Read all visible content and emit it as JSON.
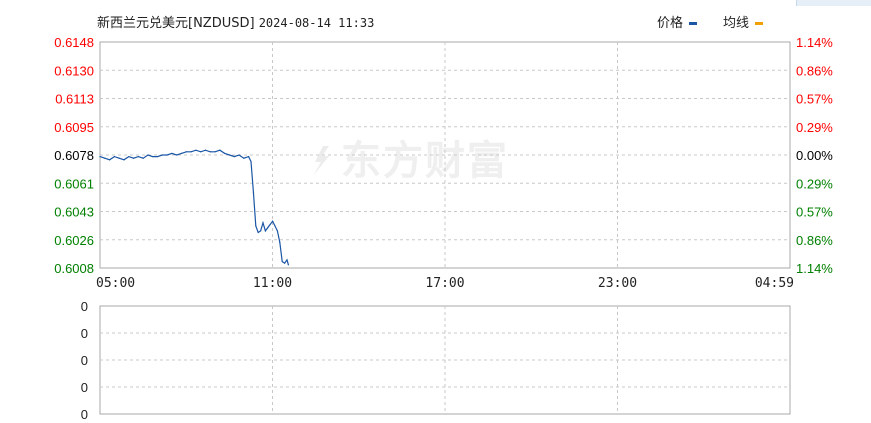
{
  "header": {
    "title": "新西兰元兑美元[NZDUSD]",
    "datetime": "2024-08-14 11:33"
  },
  "legend": {
    "price_label": "价格",
    "avg_label": "均线",
    "price_color": "#1a56a6",
    "avg_color": "#f0a000"
  },
  "watermark": {
    "text": "东方财富",
    "icon": "eastmoney-logo-icon"
  },
  "colors": {
    "up": "#ff0000",
    "down": "#008000",
    "neutral": "#000000",
    "line": "#1a56a6",
    "grid": "#c8c8c8"
  },
  "chart_data": [
    {
      "type": "line",
      "title": "新西兰元兑美元[NZDUSD] 2024-08-14 11:33",
      "prev_close": 0.6078,
      "y_tick_labels": [
        "0.6148",
        "0.6130",
        "0.6113",
        "0.6095",
        "0.6078",
        "0.6061",
        "0.6043",
        "0.6026",
        "0.6008"
      ],
      "pct_tick_labels": [
        "1.14%",
        "0.86%",
        "0.57%",
        "0.29%",
        "0.00%",
        "0.29%",
        "0.57%",
        "0.86%",
        "1.14%"
      ],
      "ylim": [
        0.6008,
        0.6148
      ],
      "x_tick_labels": [
        "05:00",
        "11:00",
        "17:00",
        "23:00",
        "04:59"
      ],
      "x_range": [
        "05:00",
        "04:59"
      ],
      "grid": true,
      "series": [
        {
          "name": "价格",
          "x": [
            "05:00",
            "05:10",
            "05:20",
            "05:30",
            "05:40",
            "05:50",
            "06:00",
            "06:10",
            "06:20",
            "06:30",
            "06:40",
            "06:50",
            "07:00",
            "07:10",
            "07:20",
            "07:30",
            "07:40",
            "07:50",
            "08:00",
            "08:10",
            "08:20",
            "08:30",
            "08:40",
            "08:50",
            "09:00",
            "09:10",
            "09:20",
            "09:30",
            "09:40",
            "09:50",
            "10:00",
            "10:10",
            "10:15",
            "10:20",
            "10:25",
            "10:30",
            "10:35",
            "10:40",
            "10:45",
            "10:50",
            "10:55",
            "11:00",
            "11:05",
            "11:10",
            "11:15",
            "11:20",
            "11:25",
            "11:30",
            "11:33"
          ],
          "values": [
            0.6077,
            0.6076,
            0.6075,
            0.6077,
            0.6076,
            0.6075,
            0.6077,
            0.6076,
            0.6077,
            0.6076,
            0.6078,
            0.6077,
            0.6077,
            0.6078,
            0.6078,
            0.6079,
            0.6078,
            0.6079,
            0.608,
            0.608,
            0.6081,
            0.608,
            0.6081,
            0.608,
            0.608,
            0.6081,
            0.6079,
            0.6078,
            0.6077,
            0.6078,
            0.6076,
            0.6077,
            0.6074,
            0.6055,
            0.6034,
            0.603,
            0.6031,
            0.6036,
            0.6031,
            0.6033,
            0.6035,
            0.6037,
            0.6034,
            0.6031,
            0.6024,
            0.6012,
            0.6011,
            0.6013,
            0.601
          ]
        }
      ]
    },
    {
      "type": "bar",
      "y_tick_labels": [
        "0",
        "0",
        "0",
        "0",
        "0"
      ],
      "x_range": [
        "05:00",
        "04:59"
      ],
      "grid": true,
      "series": []
    }
  ]
}
